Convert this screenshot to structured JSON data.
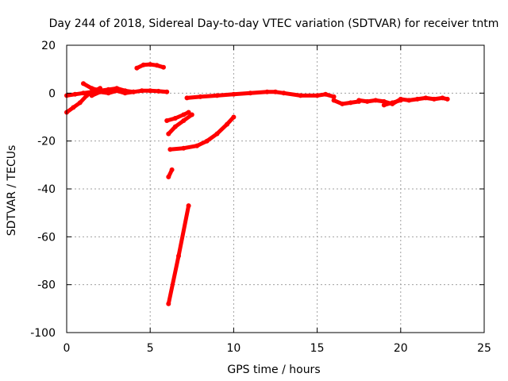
{
  "chart_data": {
    "type": "line",
    "title": "Day 244 of 2018, Sidereal Day-to-day VTEC variation (SDTVAR) for receiver tntm",
    "xlabel": "GPS time / hours",
    "ylabel": "SDTVAR / TECUs",
    "xlim": [
      0,
      25
    ],
    "ylim": [
      -100,
      20
    ],
    "xticks": [
      0,
      5,
      10,
      15,
      20,
      25
    ],
    "yticks": [
      20,
      0,
      -20,
      -40,
      -60,
      -80,
      -100
    ],
    "grid": true,
    "color": "#ff0000",
    "series": [
      {
        "x": [
          0.0,
          0.5,
          1.0,
          1.5
        ],
        "y": [
          -1.0,
          -0.5,
          0.0,
          0.5
        ]
      },
      {
        "x": [
          0.0,
          0.4,
          0.8,
          1.2,
          1.6,
          2.0
        ],
        "y": [
          -8.0,
          -6.0,
          -4.0,
          -1.0,
          1.0,
          2.0
        ]
      },
      {
        "x": [
          1.0,
          1.5,
          2.0,
          2.5,
          3.0,
          3.5,
          4.0,
          4.5,
          5.0,
          5.5,
          6.0
        ],
        "y": [
          4.0,
          2.0,
          1.0,
          1.5,
          2.0,
          1.0,
          0.5,
          1.0,
          1.0,
          0.8,
          0.5
        ]
      },
      {
        "x": [
          1.5,
          2.0,
          2.5,
          3.0,
          3.5,
          4.0
        ],
        "y": [
          -1.0,
          0.5,
          0.0,
          1.0,
          0.0,
          0.5
        ]
      },
      {
        "x": [
          4.2,
          4.6,
          5.0,
          5.4,
          5.8
        ],
        "y": [
          10.5,
          11.8,
          12.0,
          11.6,
          10.8
        ]
      },
      {
        "x": [
          6.0,
          6.5,
          7.0,
          7.3
        ],
        "y": [
          -11.5,
          -10.5,
          -9.0,
          -8.0
        ]
      },
      {
        "x": [
          6.1,
          6.5,
          7.0,
          7.5
        ],
        "y": [
          -17.0,
          -14.0,
          -11.5,
          -9.0
        ]
      },
      {
        "x": [
          6.1,
          6.3
        ],
        "y": [
          -35.0,
          -32.0
        ]
      },
      {
        "x": [
          6.1,
          6.7,
          7.3
        ],
        "y": [
          -88.0,
          -68.0,
          -47.0
        ]
      },
      {
        "x": [
          6.2,
          7.0,
          7.8,
          8.4,
          9.0,
          9.6,
          10.0
        ],
        "y": [
          -23.5,
          -23.0,
          -22.0,
          -20.0,
          -17.0,
          -13.0,
          -10.0
        ]
      },
      {
        "x": [
          7.2,
          8.0,
          9.0,
          10.0,
          11.0,
          12.0,
          12.5,
          13.0,
          14.0,
          15.0,
          15.5,
          16.0
        ],
        "y": [
          -2.0,
          -1.5,
          -1.0,
          -0.5,
          0.0,
          0.5,
          0.5,
          0.0,
          -1.0,
          -1.0,
          -0.5,
          -1.5
        ]
      },
      {
        "x": [
          16.0,
          16.5,
          17.0,
          17.5
        ],
        "y": [
          -3.0,
          -4.5,
          -4.0,
          -3.5
        ]
      },
      {
        "x": [
          17.5,
          18.0,
          18.5,
          19.0,
          19.5,
          20.0,
          20.5,
          21.0,
          21.5,
          22.0,
          22.5,
          22.8
        ],
        "y": [
          -3.0,
          -3.5,
          -3.0,
          -3.5,
          -4.5,
          -2.5,
          -3.0,
          -2.5,
          -2.0,
          -2.5,
          -2.0,
          -2.5
        ]
      },
      {
        "x": [
          19.0,
          19.5,
          20.0
        ],
        "y": [
          -5.0,
          -4.0,
          -3.0
        ]
      }
    ]
  }
}
